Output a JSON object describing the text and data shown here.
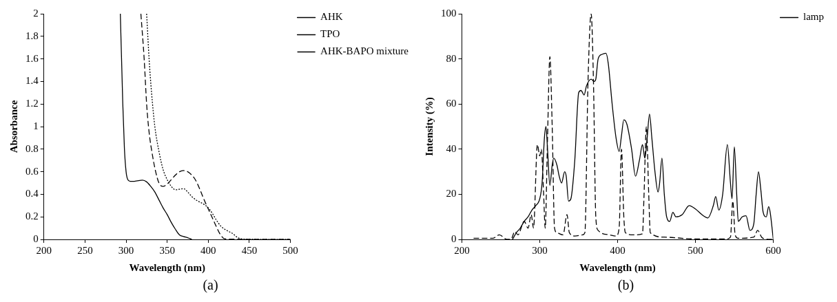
{
  "chart_data": [
    {
      "type": "line",
      "xlabel": "Wavelength (nm)",
      "ylabel": "Absorbance",
      "xlim": [
        200,
        500
      ],
      "xticks": [
        200,
        250,
        300,
        350,
        400,
        450,
        500
      ],
      "ylim": [
        0,
        2
      ],
      "yticks": [
        0,
        0.2,
        0.4,
        0.6,
        0.8,
        1,
        1.2,
        1.4,
        1.6,
        1.8,
        2
      ],
      "legend": "top right",
      "annotations": [
        "(a)"
      ],
      "series": [
        {
          "name": "AHK",
          "color": "#000000",
          "line_style": "solid",
          "x": [
            293,
            296,
            298,
            300,
            302,
            305,
            310,
            320,
            325,
            330,
            335,
            340,
            345,
            350,
            355,
            360,
            365,
            370,
            375,
            380
          ],
          "values": [
            2,
            1.2,
            0.8,
            0.6,
            0.53,
            0.515,
            0.515,
            0.525,
            0.51,
            0.47,
            0.42,
            0.35,
            0.28,
            0.22,
            0.15,
            0.09,
            0.04,
            0.025,
            0.015,
            0
          ]
        },
        {
          "name": "TPO",
          "color": "#000000",
          "line_style": "dashed",
          "x": [
            318,
            322,
            325,
            328,
            332,
            336,
            340,
            345,
            350,
            355,
            360,
            365,
            370,
            375,
            380,
            385,
            390,
            395,
            400,
            405,
            410,
            415,
            420,
            430,
            440,
            500
          ],
          "values": [
            2,
            1.6,
            1.2,
            0.95,
            0.75,
            0.6,
            0.5,
            0.47,
            0.49,
            0.53,
            0.57,
            0.6,
            0.61,
            0.6,
            0.57,
            0.52,
            0.44,
            0.35,
            0.27,
            0.19,
            0.11,
            0.04,
            0.005,
            0.002,
            0,
            0
          ]
        },
        {
          "name": "AHK-BAPO mixture",
          "color": "#000000",
          "line_style": "dotted",
          "x": [
            325,
            328,
            331,
            335,
            340,
            345,
            350,
            355,
            360,
            365,
            370,
            375,
            380,
            385,
            390,
            395,
            400,
            405,
            410,
            415,
            420,
            425,
            430,
            435,
            440,
            450,
            500
          ],
          "values": [
            2,
            1.6,
            1.3,
            1.0,
            0.78,
            0.62,
            0.53,
            0.47,
            0.44,
            0.445,
            0.45,
            0.42,
            0.38,
            0.35,
            0.33,
            0.31,
            0.28,
            0.23,
            0.17,
            0.12,
            0.09,
            0.07,
            0.05,
            0.02,
            0.005,
            0.002,
            0
          ]
        }
      ]
    },
    {
      "type": "line",
      "xlabel": "Wavelength (nm)",
      "ylabel": "Intensity (%)",
      "xlim": [
        200,
        600
      ],
      "xticks": [
        200,
        300,
        400,
        500,
        600
      ],
      "ylim": [
        0,
        100
      ],
      "yticks": [
        0,
        20,
        40,
        60,
        80,
        100
      ],
      "legend": "top right",
      "annotations": [
        "(b)"
      ],
      "series": [
        {
          "color": "#000000",
          "line_style": "dashed",
          "x": [
            215,
            240,
            248,
            258,
            263,
            268,
            272,
            280,
            285,
            289,
            292,
            297,
            300,
            302,
            305,
            307,
            310,
            313,
            316,
            319,
            322,
            330,
            335,
            338,
            345,
            355,
            358,
            362,
            366,
            369,
            372,
            375,
            390,
            398,
            402,
            405,
            408,
            410,
            420,
            432,
            434,
            437,
            440,
            442,
            460,
            500,
            540,
            545,
            548,
            551,
            555,
            575,
            580,
            585,
            590,
            600
          ],
          "values": [
            0.5,
            0.5,
            2,
            0,
            0,
            3.5,
            2,
            8,
            5,
            11,
            5,
            42,
            37,
            40,
            20,
            5,
            45,
            81,
            50,
            5,
            3,
            2,
            11,
            3,
            1.5,
            2,
            3,
            70,
            100,
            70,
            10,
            4,
            2,
            1.5,
            5,
            40,
            10,
            3,
            2,
            2.5,
            20,
            50,
            20,
            3,
            1,
            0.2,
            0.2,
            1,
            17,
            2,
            0.5,
            1,
            4,
            1,
            0.2,
            0
          ]
        },
        {
          "name": "lamp",
          "color": "#000000",
          "line_style": "solid",
          "x": [
            265,
            270,
            275,
            280,
            285,
            290,
            295,
            300,
            303,
            306,
            308,
            310,
            313,
            316,
            318,
            322,
            325,
            328,
            332,
            334,
            337,
            340,
            345,
            350,
            353,
            357,
            360,
            366,
            370,
            372,
            375,
            380,
            385,
            388,
            393,
            398,
            402,
            405,
            408,
            412,
            418,
            423,
            428,
            432,
            435,
            438,
            441,
            444,
            448,
            452,
            454,
            457,
            460,
            463,
            467,
            471,
            475,
            483,
            492,
            500,
            510,
            516,
            523,
            526,
            530,
            535,
            541,
            545,
            547,
            550,
            553,
            555,
            560,
            565,
            570,
            575,
            578,
            581,
            584,
            587,
            591,
            594,
            596,
            600
          ],
          "values": [
            0,
            3,
            5,
            8,
            10,
            13,
            15,
            18,
            25,
            45,
            50,
            40,
            24,
            33,
            36,
            33,
            28,
            25,
            30,
            28,
            17,
            18,
            35,
            65,
            66,
            64,
            68,
            71,
            70,
            71,
            80,
            82,
            82.5,
            78,
            60,
            45,
            39,
            46,
            53,
            51,
            40,
            28,
            35,
            42,
            36,
            45,
            55.5,
            45,
            30,
            21,
            25,
            36,
            20,
            10,
            8,
            12,
            10,
            11,
            15,
            13.5,
            10.5,
            9.5,
            15,
            19,
            13,
            20,
            42,
            25,
            18,
            41,
            20,
            8,
            10,
            10.5,
            4,
            7,
            20,
            30,
            22,
            12,
            10,
            14.5,
            12,
            0
          ]
        }
      ]
    }
  ]
}
